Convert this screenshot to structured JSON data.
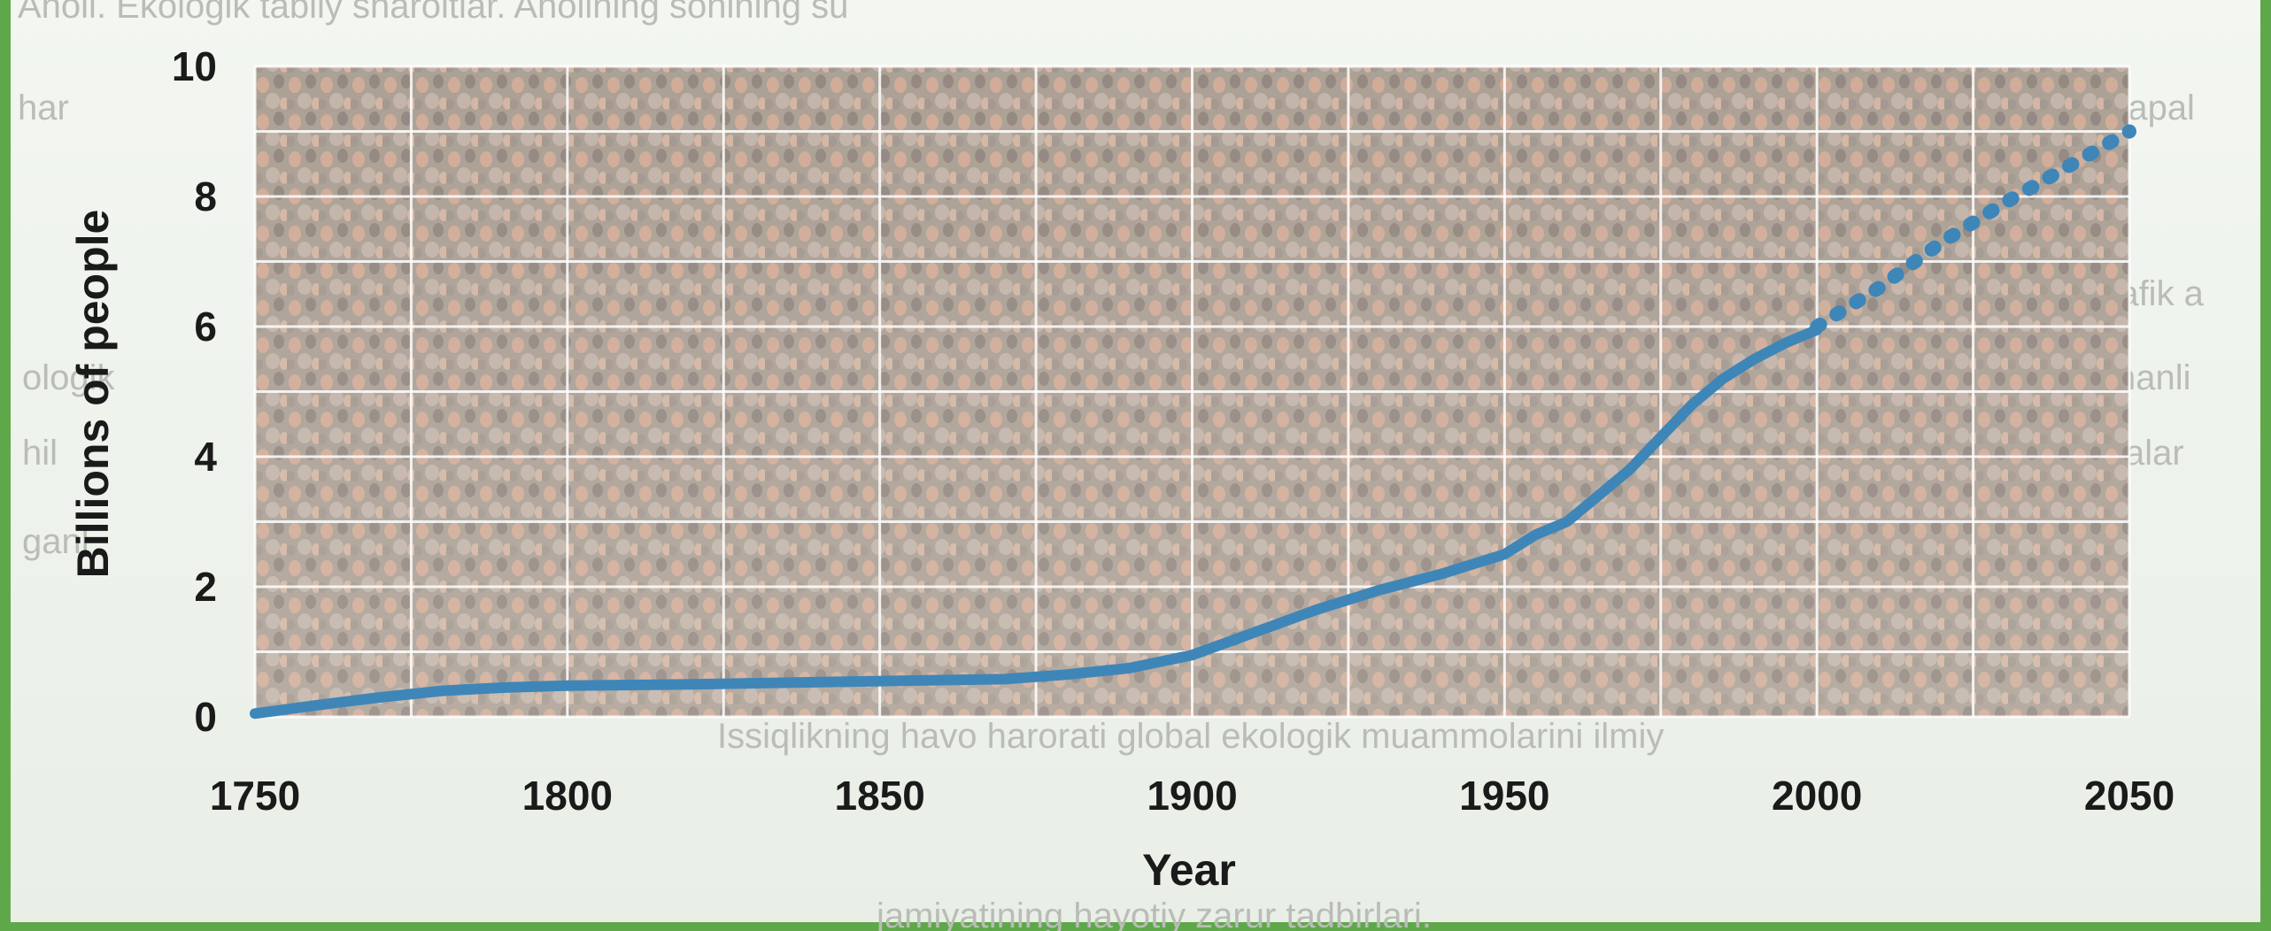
{
  "background_text": {
    "lines": [
      "Aholi. Ekologik tabiiy sharoitlar.  Aholining sonining su",
      "har",
      "Issiqlikning havo harorati global ekologik muammolarini ilmiy",
      "jamiyatining hayotiy zarur tadbirlari."
    ],
    "fragments": [
      "rafik a",
      "ologik",
      "hil",
      "alar",
      "ganl",
      "hanli",
      "mapal"
    ]
  },
  "colors": {
    "frame": "#5fa84a",
    "line": "#3f86b8",
    "grid": "#ffffff",
    "text": "#1a1a1a"
  },
  "chart_data": {
    "type": "line",
    "title": "",
    "xlabel": "Year",
    "ylabel": "Billions of people",
    "xlim": [
      1750,
      2050
    ],
    "ylim": [
      0,
      10
    ],
    "xticks": [
      "1750",
      "1800",
      "1850",
      "1900",
      "1950",
      "2000",
      "2050"
    ],
    "yticks": [
      "0",
      "2",
      "4",
      "6",
      "8",
      "10"
    ],
    "grid": true,
    "series": [
      {
        "style": "solid",
        "x": [
          1750,
          1760,
          1770,
          1780,
          1790,
          1800,
          1820,
          1850,
          1870,
          1880,
          1890,
          1900,
          1910,
          1920,
          1930,
          1940,
          1950,
          1955,
          1960,
          1965,
          1970,
          1975,
          1980,
          1985,
          1990,
          1995,
          2000
        ],
        "y": [
          0.05,
          0.18,
          0.3,
          0.4,
          0.45,
          0.48,
          0.5,
          0.55,
          0.58,
          0.65,
          0.75,
          0.95,
          1.3,
          1.65,
          1.95,
          2.2,
          2.5,
          2.8,
          3.0,
          3.4,
          3.8,
          4.3,
          4.8,
          5.2,
          5.5,
          5.75,
          5.95
        ]
      },
      {
        "style": "dotted",
        "x": [
          2000,
          2010,
          2020,
          2030,
          2040,
          2050
        ],
        "y": [
          6.0,
          6.6,
          7.3,
          7.9,
          8.45,
          9.0
        ]
      }
    ]
  }
}
